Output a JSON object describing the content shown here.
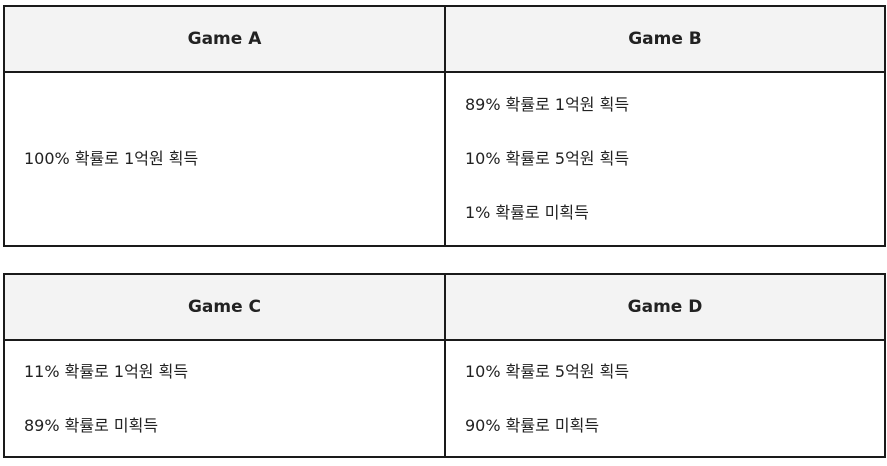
{
  "tables": [
    {
      "headers": [
        "Game A",
        "Game B"
      ],
      "cells": [
        [
          "100% 확률로 1억원 획득"
        ],
        [
          "89% 확률로 1억원 획득",
          "10% 확률로 5억원 획득",
          "1% 확률로 미획득"
        ]
      ]
    },
    {
      "headers": [
        "Game C",
        "Game D"
      ],
      "cells": [
        [
          "11% 확률로 1억원 획득",
          "89% 확률로 미획득"
        ],
        [
          "10% 확률로 5억원 획득",
          "90% 확률로 미획득"
        ]
      ]
    }
  ]
}
